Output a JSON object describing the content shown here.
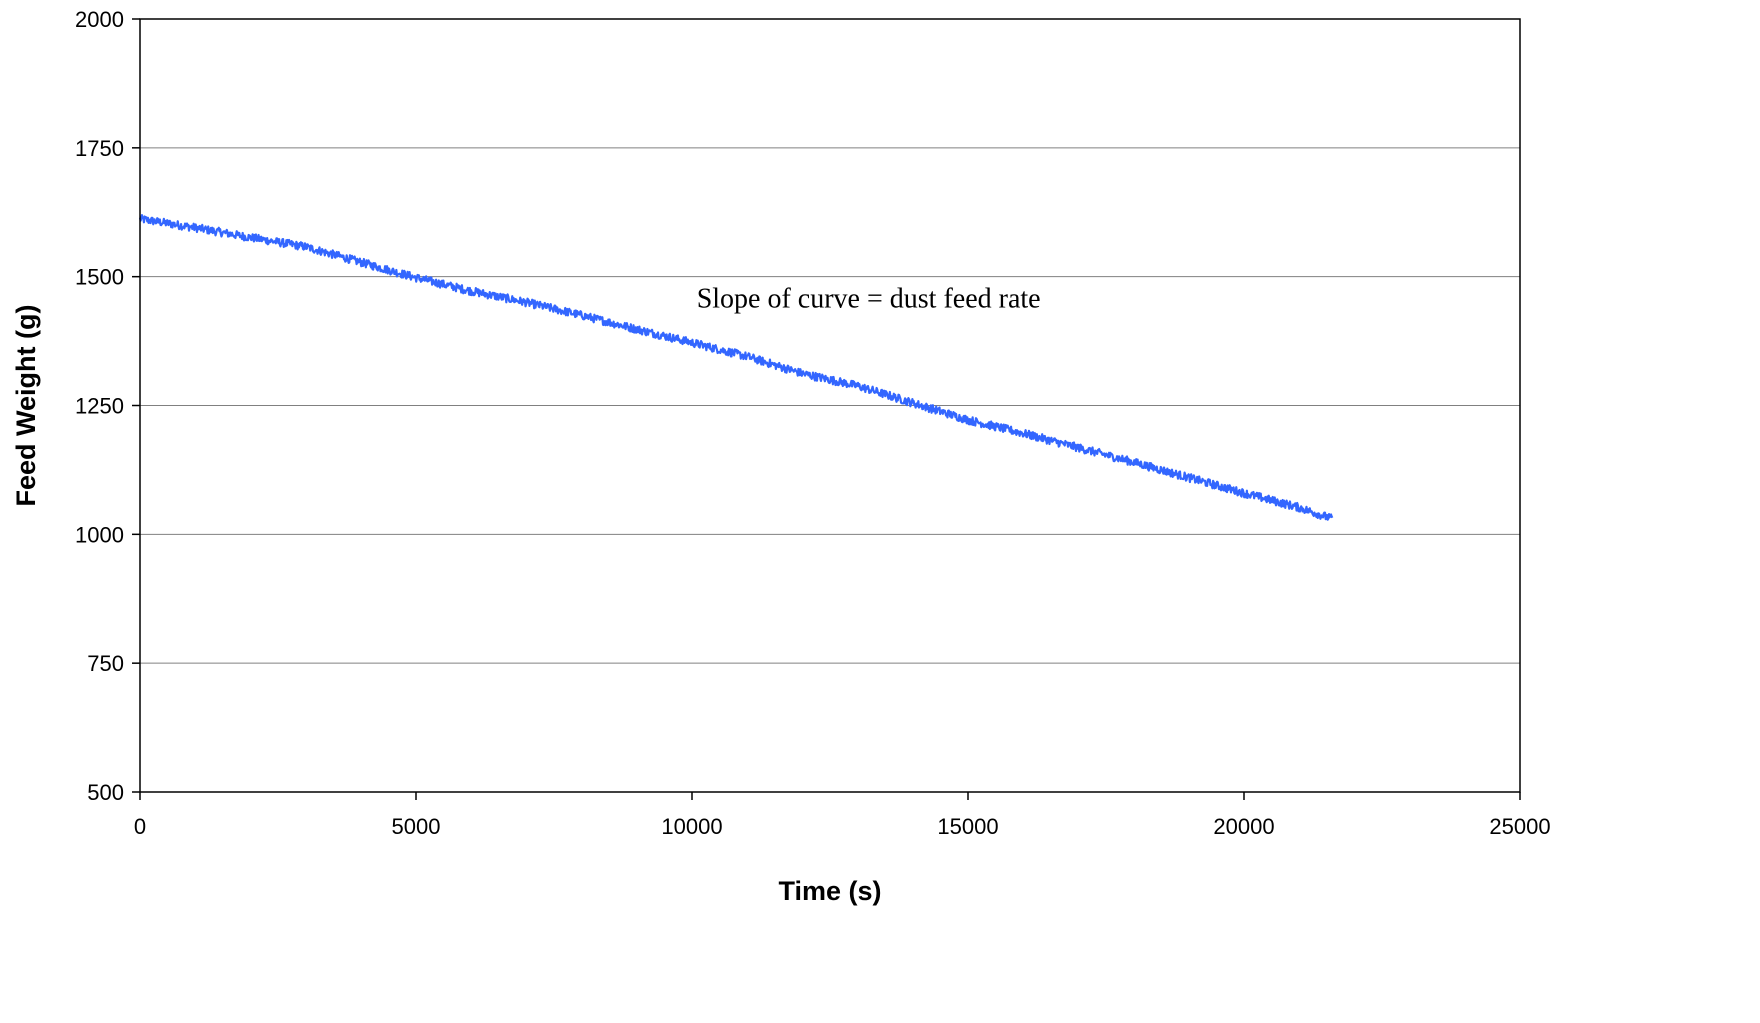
{
  "chart_data": {
    "type": "line",
    "title": "",
    "xlabel": "Time (s)",
    "ylabel": "Feed Weight (g)",
    "xlim": [
      0,
      25000
    ],
    "ylim": [
      500,
      2000
    ],
    "xticks": [
      0,
      5000,
      10000,
      15000,
      20000,
      25000
    ],
    "yticks": [
      500,
      750,
      1000,
      1250,
      1500,
      1750,
      2000
    ],
    "xtick_labels": [
      "0",
      "5000",
      "10000",
      "15000",
      "20000",
      "25000"
    ],
    "ytick_labels": [
      "500",
      "750",
      "1000",
      "1250",
      "1500",
      "1750",
      "2000"
    ],
    "grid": "horizontal",
    "legend": "none",
    "series_color": "#3366ff",
    "series": [
      {
        "x": [
          0,
          1000,
          2000,
          3000,
          4000,
          5000,
          6000,
          7000,
          8000,
          9000,
          10000,
          11000,
          12000,
          13000,
          14000,
          15000,
          16000,
          17000,
          18000,
          19000,
          20000,
          21000,
          21600
        ],
        "y": [
          1612,
          1595,
          1576,
          1558,
          1528,
          1498,
          1472,
          1450,
          1425,
          1398,
          1372,
          1345,
          1312,
          1288,
          1255,
          1222,
          1196,
          1168,
          1140,
          1110,
          1080,
          1052,
          1030
        ]
      }
    ],
    "annotations": [
      {
        "text": "Slope of curve = dust feed rate",
        "x": 13200,
        "y": 1440
      }
    ]
  }
}
